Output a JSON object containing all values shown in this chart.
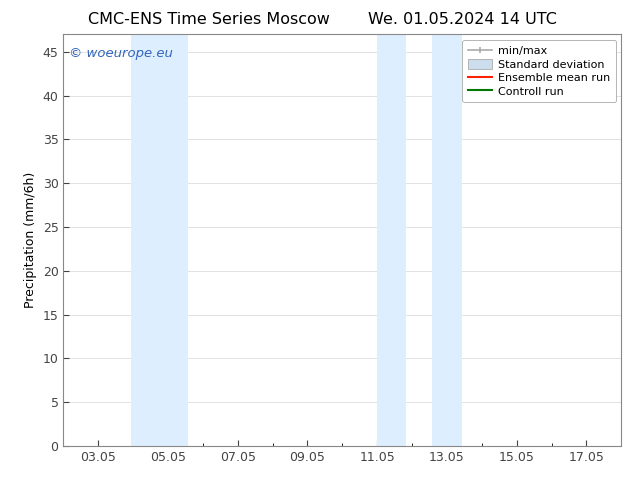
{
  "title_left": "CMC-ENS Time Series Moscow",
  "title_right": "We. 01.05.2024 14 UTC",
  "ylabel": "Precipitation (mm/6h)",
  "ylim": [
    0,
    47
  ],
  "yticks": [
    0,
    5,
    10,
    15,
    20,
    25,
    30,
    35,
    40,
    45
  ],
  "xtick_labels": [
    "03.05",
    "05.05",
    "07.05",
    "09.05",
    "11.05",
    "13.05",
    "15.05",
    "17.05"
  ],
  "xtick_positions": [
    3,
    5,
    7,
    9,
    11,
    13,
    15,
    17
  ],
  "xlim": [
    2.0,
    18.0
  ],
  "shaded_regions": [
    {
      "start": 3.95,
      "end": 4.75
    },
    {
      "start": 4.75,
      "end": 5.58
    },
    {
      "start": 11.0,
      "end": 11.83
    },
    {
      "start": 12.58,
      "end": 13.42
    }
  ],
  "shaded_color": "#ddeeff",
  "watermark_text": "© woeurope.eu",
  "watermark_color": "#3366bb",
  "background_color": "#ffffff",
  "plot_bg_color": "#ffffff",
  "legend_items": [
    {
      "label": "min/max",
      "color": "#aaaaaa"
    },
    {
      "label": "Standard deviation",
      "color": "#ccdded"
    },
    {
      "label": "Ensemble mean run",
      "color": "#ff2200"
    },
    {
      "label": "Controll run",
      "color": "#007700"
    }
  ],
  "font_size_title": 11.5,
  "font_size_axis_label": 9,
  "font_size_tick": 9,
  "font_size_legend": 8,
  "font_size_watermark": 9.5,
  "grid_color": "#dddddd",
  "spine_color": "#888888",
  "tick_color": "#444444"
}
